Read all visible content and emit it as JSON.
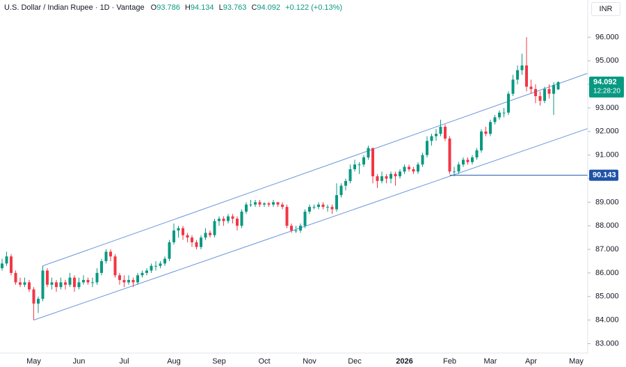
{
  "chart_data": {
    "type": "candlestick",
    "symbol": "U.S. Dollar / Indian Rupee · 1D · Vantage",
    "ohlc_letters": [
      "O",
      "H",
      "L",
      "C"
    ],
    "change": "+0.122 (+0.13%)",
    "currency": "INR",
    "countdown": "12:28:20",
    "up_color": "#089981",
    "down_color": "#f23645",
    "categories": [
      null,
      null,
      null,
      null,
      null,
      null,
      null,
      "May",
      null,
      null,
      null,
      null,
      null,
      null,
      null,
      null,
      null,
      "Jun",
      null,
      null,
      null,
      null,
      null,
      null,
      null,
      null,
      null,
      "Jul",
      null,
      null,
      null,
      null,
      null,
      null,
      null,
      null,
      null,
      null,
      "Aug",
      null,
      null,
      null,
      null,
      null,
      null,
      null,
      null,
      null,
      "Sep",
      null,
      null,
      null,
      null,
      null,
      null,
      null,
      null,
      null,
      "Oct",
      null,
      null,
      null,
      null,
      null,
      null,
      null,
      null,
      null,
      "Nov",
      null,
      null,
      null,
      null,
      null,
      null,
      null,
      null,
      null,
      "Dec",
      null,
      null,
      null,
      null,
      null,
      null,
      null,
      null,
      null,
      null,
      "2026",
      null,
      null,
      null,
      null,
      null,
      null,
      null,
      null,
      null,
      "Feb",
      null,
      null,
      null,
      null,
      null,
      null,
      null,
      null,
      "Mar",
      null,
      null,
      null,
      null,
      null,
      null,
      null,
      null,
      "Apr",
      null,
      null,
      null,
      null,
      null,
      null,
      null,
      null,
      null,
      "May"
    ],
    "candles": [
      [
        86.2,
        86.6,
        86.1,
        86.4
      ],
      [
        86.4,
        86.9,
        86.3,
        86.7
      ],
      [
        86.7,
        86.8,
        85.9,
        86.0
      ],
      [
        86.0,
        86.1,
        85.5,
        85.6
      ],
      [
        85.6,
        85.8,
        85.4,
        85.5
      ],
      [
        85.5,
        85.8,
        85.4,
        85.6
      ],
      [
        85.6,
        85.7,
        85.2,
        85.3
      ],
      [
        85.3,
        85.4,
        84.0,
        84.7
      ],
      [
        84.7,
        85.0,
        84.3,
        84.9
      ],
      [
        84.9,
        86.3,
        84.8,
        86.1
      ],
      [
        86.1,
        86.2,
        85.4,
        85.5
      ],
      [
        85.5,
        85.8,
        85.3,
        85.6
      ],
      [
        85.6,
        85.7,
        85.2,
        85.4
      ],
      [
        85.4,
        85.8,
        85.3,
        85.6
      ],
      [
        85.6,
        85.7,
        85.3,
        85.5
      ],
      [
        85.5,
        86.0,
        85.4,
        85.8
      ],
      [
        85.8,
        85.9,
        85.2,
        85.4
      ],
      [
        85.4,
        85.8,
        85.3,
        85.6
      ],
      [
        85.6,
        85.9,
        85.5,
        85.7
      ],
      [
        85.7,
        85.8,
        85.5,
        85.6
      ],
      [
        85.6,
        85.8,
        85.4,
        85.6
      ],
      [
        85.6,
        86.2,
        85.5,
        86.0
      ],
      [
        86.0,
        86.6,
        85.9,
        86.5
      ],
      [
        86.5,
        87.0,
        86.4,
        86.9
      ],
      [
        86.9,
        87.0,
        86.5,
        86.7
      ],
      [
        86.7,
        86.8,
        85.8,
        85.9
      ],
      [
        85.9,
        86.0,
        85.5,
        85.7
      ],
      [
        85.7,
        85.9,
        85.4,
        85.6
      ],
      [
        85.6,
        85.9,
        85.5,
        85.7
      ],
      [
        85.7,
        85.8,
        85.4,
        85.6
      ],
      [
        85.6,
        86.0,
        85.5,
        85.9
      ],
      [
        85.9,
        86.1,
        85.8,
        86.0
      ],
      [
        86.0,
        86.2,
        85.9,
        86.1
      ],
      [
        86.1,
        86.4,
        86.0,
        86.3
      ],
      [
        86.3,
        86.5,
        86.1,
        86.3
      ],
      [
        86.3,
        86.5,
        86.2,
        86.4
      ],
      [
        86.4,
        86.7,
        86.3,
        86.6
      ],
      [
        86.6,
        87.4,
        86.5,
        87.3
      ],
      [
        87.3,
        88.1,
        87.2,
        87.8
      ],
      [
        87.8,
        88.0,
        87.5,
        87.9
      ],
      [
        87.9,
        88.0,
        87.4,
        87.6
      ],
      [
        87.6,
        87.7,
        87.3,
        87.5
      ],
      [
        87.5,
        87.6,
        87.1,
        87.3
      ],
      [
        87.3,
        87.4,
        87.0,
        87.1
      ],
      [
        87.1,
        87.6,
        87.0,
        87.5
      ],
      [
        87.5,
        87.9,
        87.4,
        87.7
      ],
      [
        87.7,
        87.8,
        87.5,
        87.6
      ],
      [
        87.6,
        88.3,
        87.5,
        88.2
      ],
      [
        88.2,
        88.4,
        88.0,
        88.3
      ],
      [
        88.3,
        88.4,
        88.0,
        88.2
      ],
      [
        88.2,
        88.5,
        88.1,
        88.4
      ],
      [
        88.4,
        88.5,
        88.1,
        88.3
      ],
      [
        88.3,
        88.4,
        87.8,
        88.0
      ],
      [
        88.0,
        88.7,
        87.9,
        88.6
      ],
      [
        88.6,
        89.0,
        88.5,
        88.9
      ],
      [
        88.9,
        89.1,
        88.8,
        88.9
      ],
      [
        88.9,
        89.1,
        88.8,
        89.0
      ],
      [
        89.0,
        89.1,
        88.8,
        88.9
      ],
      [
        88.9,
        89.0,
        88.8,
        88.95
      ],
      [
        88.95,
        89.0,
        88.8,
        88.9
      ],
      [
        88.9,
        89.1,
        88.8,
        89.0
      ],
      [
        89.0,
        89.0,
        88.8,
        88.9
      ],
      [
        88.9,
        89.0,
        88.7,
        88.8
      ],
      [
        88.8,
        88.9,
        87.9,
        88.0
      ],
      [
        88.0,
        88.1,
        87.7,
        87.8
      ],
      [
        87.8,
        88.0,
        87.7,
        87.8
      ],
      [
        87.8,
        88.1,
        87.7,
        88.0
      ],
      [
        88.0,
        88.7,
        87.9,
        88.6
      ],
      [
        88.6,
        88.9,
        88.5,
        88.8
      ],
      [
        88.8,
        88.9,
        88.7,
        88.8
      ],
      [
        88.8,
        89.0,
        88.7,
        88.9
      ],
      [
        88.9,
        89.0,
        88.7,
        88.8
      ],
      [
        88.8,
        88.9,
        88.6,
        88.8
      ],
      [
        88.8,
        88.9,
        88.5,
        88.7
      ],
      [
        88.7,
        89.8,
        88.6,
        89.3
      ],
      [
        89.3,
        89.8,
        89.2,
        89.7
      ],
      [
        89.7,
        90.0,
        89.5,
        89.9
      ],
      [
        89.9,
        90.6,
        89.8,
        90.4
      ],
      [
        90.4,
        90.8,
        90.3,
        90.6
      ],
      [
        90.6,
        90.7,
        90.2,
        90.6
      ],
      [
        90.6,
        91.0,
        90.5,
        90.9
      ],
      [
        90.9,
        91.4,
        90.8,
        91.3
      ],
      [
        91.3,
        91.3,
        89.8,
        90.1
      ],
      [
        90.1,
        90.2,
        89.6,
        89.9
      ],
      [
        89.9,
        90.3,
        89.8,
        90.1
      ],
      [
        90.1,
        90.2,
        89.8,
        90.0
      ],
      [
        90.0,
        90.3,
        89.8,
        90.2
      ],
      [
        90.2,
        90.3,
        89.7,
        90.1
      ],
      [
        90.1,
        90.4,
        90.0,
        90.3
      ],
      [
        90.3,
        90.6,
        90.2,
        90.5
      ],
      [
        90.5,
        90.6,
        90.3,
        90.4
      ],
      [
        90.4,
        90.5,
        90.2,
        90.3
      ],
      [
        90.3,
        90.7,
        90.2,
        90.6
      ],
      [
        90.6,
        91.1,
        90.5,
        91.0
      ],
      [
        91.0,
        91.8,
        90.9,
        91.6
      ],
      [
        91.6,
        91.9,
        91.4,
        91.8
      ],
      [
        91.8,
        92.1,
        91.6,
        91.9
      ],
      [
        91.9,
        92.5,
        91.8,
        92.2
      ],
      [
        92.2,
        92.3,
        91.6,
        91.7
      ],
      [
        91.7,
        91.8,
        90.2,
        90.3
      ],
      [
        90.3,
        90.5,
        90.1,
        90.3
      ],
      [
        90.3,
        90.7,
        90.2,
        90.6
      ],
      [
        90.6,
        90.9,
        90.5,
        90.8
      ],
      [
        90.8,
        90.9,
        90.6,
        90.7
      ],
      [
        90.7,
        91.0,
        90.6,
        90.9
      ],
      [
        90.9,
        91.3,
        90.8,
        91.2
      ],
      [
        91.2,
        92.1,
        91.1,
        92.0
      ],
      [
        92.0,
        92.2,
        91.8,
        91.9
      ],
      [
        91.9,
        92.5,
        91.8,
        92.4
      ],
      [
        92.4,
        92.7,
        92.3,
        92.6
      ],
      [
        92.6,
        92.9,
        92.5,
        92.8
      ],
      [
        92.8,
        93.0,
        92.6,
        92.8
      ],
      [
        92.8,
        93.7,
        92.7,
        93.6
      ],
      [
        93.6,
        94.4,
        93.5,
        94.2
      ],
      [
        94.2,
        94.8,
        94.0,
        94.6
      ],
      [
        94.6,
        95.3,
        94.4,
        94.8
      ],
      [
        94.8,
        96.0,
        93.7,
        93.9
      ],
      [
        93.9,
        94.2,
        93.6,
        93.8
      ],
      [
        93.8,
        94.0,
        93.2,
        93.5
      ],
      [
        93.5,
        93.7,
        93.1,
        93.3
      ],
      [
        93.3,
        93.9,
        93.2,
        93.8
      ],
      [
        93.8,
        94.0,
        93.4,
        93.6
      ],
      [
        93.6,
        94.1,
        92.7,
        93.97
      ],
      [
        93.786,
        94.134,
        93.763,
        94.092
      ],
      null,
      null,
      null,
      null
    ],
    "ylim": [
      82.6,
      97.4
    ],
    "yticks": [
      {
        "value": 83,
        "label": "83.000"
      },
      {
        "value": 84,
        "label": "84.000"
      },
      {
        "value": 85,
        "label": "85.000"
      },
      {
        "value": 86,
        "label": "86.000"
      },
      {
        "value": 87,
        "label": "87.000"
      },
      {
        "value": 88,
        "label": "88.000"
      },
      {
        "value": 89,
        "label": "89.000"
      },
      {
        "value": 90,
        "label": "90.000"
      },
      {
        "value": 91,
        "label": "91.000"
      },
      {
        "value": 92,
        "label": "92.000"
      },
      {
        "value": 93,
        "label": "93.000"
      },
      {
        "value": 94,
        "label": "94.000"
      },
      {
        "value": 95,
        "label": "95.000"
      },
      {
        "value": 96,
        "label": "96.000"
      }
    ],
    "channel": {
      "color": "#6a95dc",
      "upper": [
        [
          9,
          86.3
        ],
        [
          116,
          93.55
        ]
      ],
      "lower": [
        [
          7,
          84.0
        ],
        [
          99,
          90.1
        ]
      ]
    },
    "level": {
      "start": 99,
      "value": 90.143,
      "color": "#1e53a8"
    }
  }
}
